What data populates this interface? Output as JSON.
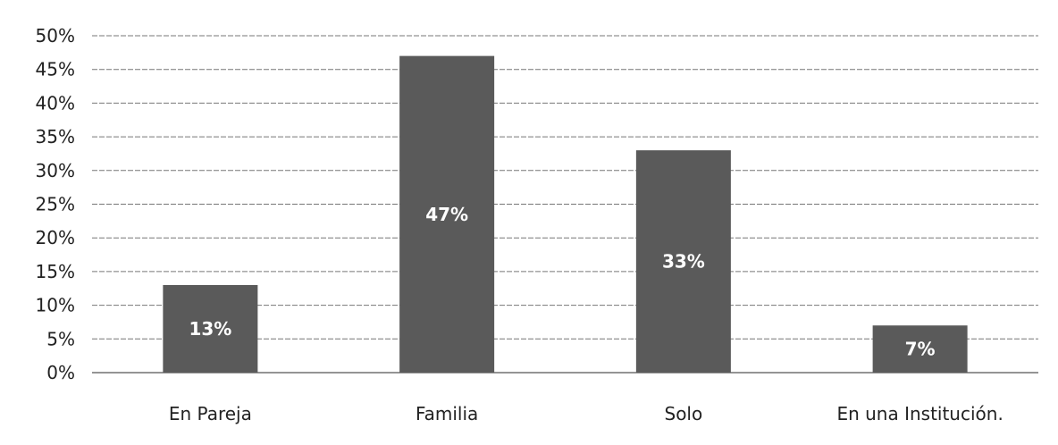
{
  "chart_data": {
    "type": "bar",
    "categories": [
      "En Pareja",
      "Familia",
      "Solo",
      "En una Institución."
    ],
    "values": [
      13,
      47,
      33,
      7
    ],
    "data_labels": [
      "13%",
      "47%",
      "33%",
      "7%"
    ],
    "ylim": [
      0,
      50
    ],
    "yticks": [
      0,
      5,
      10,
      15,
      20,
      25,
      30,
      35,
      40,
      45,
      50
    ],
    "ytick_labels": [
      "0%",
      "5%",
      "10%",
      "15%",
      "20%",
      "25%",
      "30%",
      "35%",
      "40%",
      "45%",
      "50%"
    ],
    "grid": true,
    "legend": "none",
    "bar_color": "#5a5a5a"
  }
}
